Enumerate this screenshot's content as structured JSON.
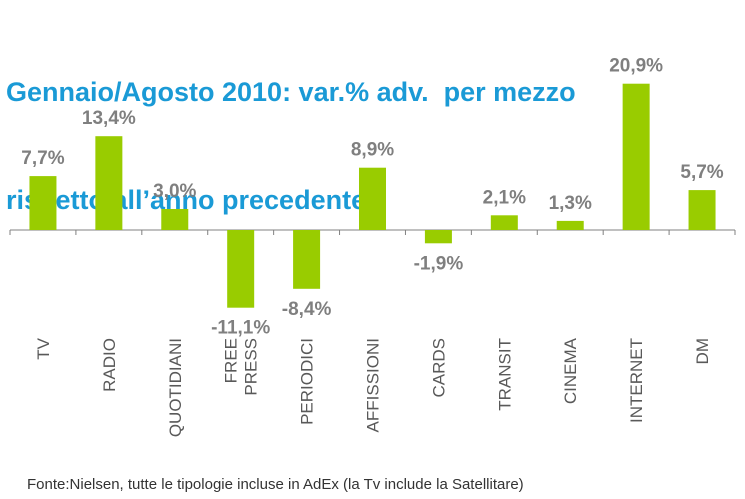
{
  "title_lines": [
    "Gennaio/Agosto 2010: var.% adv.  per mezzo",
    "rispetto all’anno precedente"
  ],
  "source_note": "Fonte:Nielsen, tutte le tipologie incluse in AdEx (la Tv include la Satellitare)",
  "colors": {
    "bar": "#99cc00",
    "title": "#1a9ad6",
    "axis": "#808080"
  },
  "chart_data": {
    "type": "bar",
    "title": "Gennaio/Agosto 2010: var.% adv.  per mezzo rispetto all’anno precedente",
    "categories": [
      [
        "TV"
      ],
      [
        "RADIO"
      ],
      [
        "QUOTIDIANI"
      ],
      [
        "FREE",
        "PRESS"
      ],
      [
        "PERIODICI"
      ],
      [
        "AFFISSIONI"
      ],
      [
        "CARDS"
      ],
      [
        "TRANSIT"
      ],
      [
        "CINEMA"
      ],
      [
        "INTERNET"
      ],
      [
        "DM"
      ]
    ],
    "values": [
      7.7,
      13.4,
      3.0,
      -11.1,
      -8.4,
      8.9,
      -1.9,
      2.1,
      1.3,
      20.9,
      5.7
    ],
    "value_labels": [
      "7,7%",
      "13,4%",
      "3,0%",
      "-11,1%",
      "-8,4%",
      "8,9%",
      "-1,9%",
      "2,1%",
      "1,3%",
      "20,9%",
      "5,7%"
    ],
    "ylim": [
      -14,
      22
    ],
    "grid": false,
    "legend": "none"
  }
}
